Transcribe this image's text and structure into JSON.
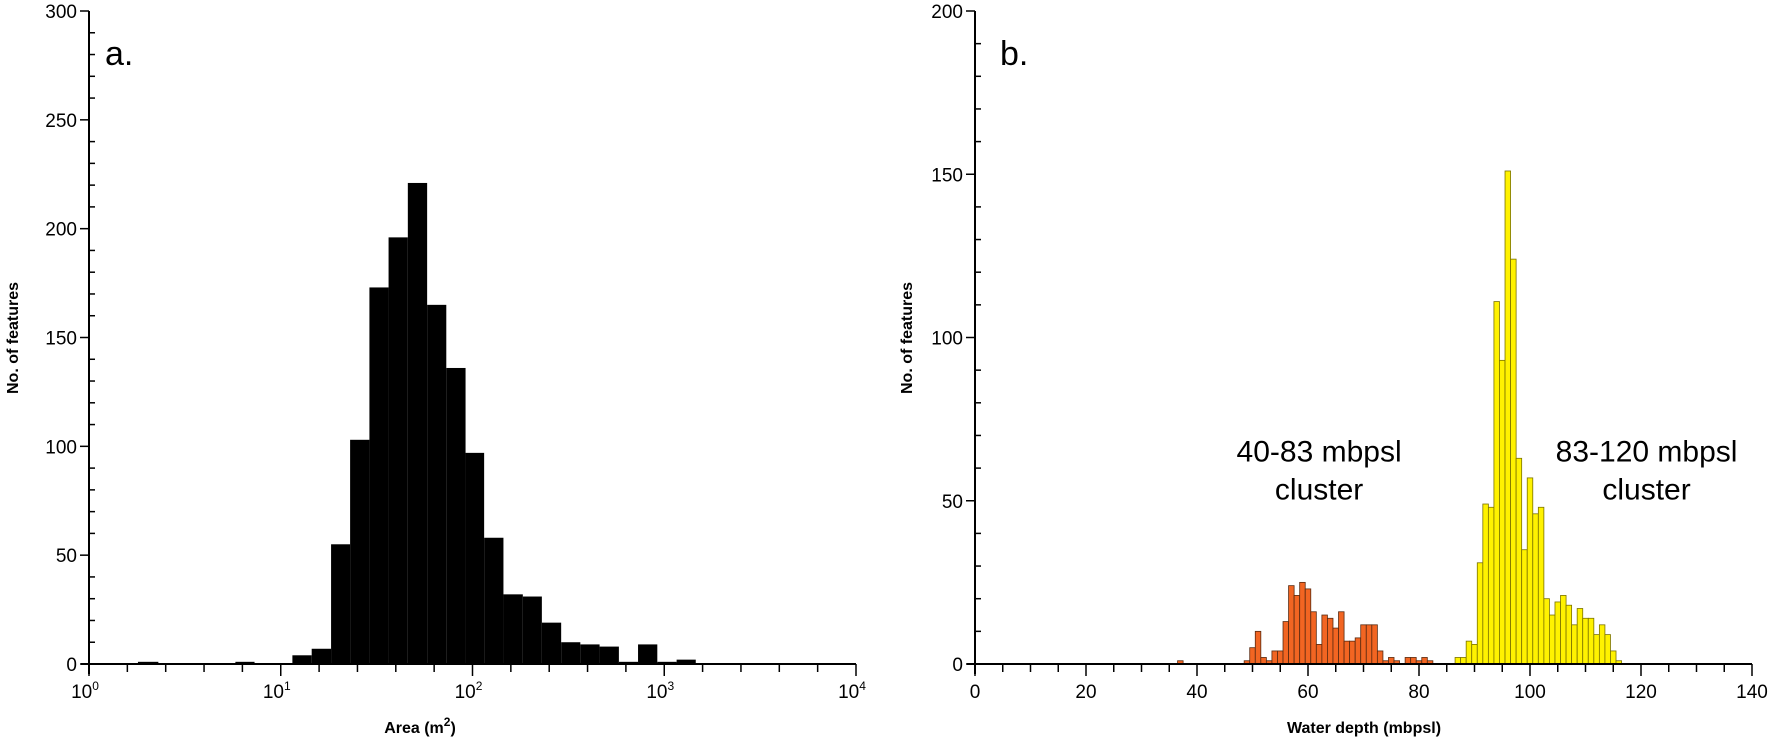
{
  "colors": {
    "bar_a": "#000000",
    "orange_fill": "#F26522",
    "orange_edge": "#5a2a10",
    "yellow_fill": "#FFF200",
    "yellow_edge": "#7a7200",
    "axis": "#000000"
  },
  "chart_data": [
    {
      "id": "a",
      "type": "bar",
      "panel_label": "a.",
      "title": "",
      "xlabel": "Area (m²)",
      "xlabel_base": "Area (m",
      "xlabel_sup": "2",
      "xlabel_close": ")",
      "ylabel": "No. of features",
      "xscale": "log",
      "xlim": [
        1,
        10000
      ],
      "ylim": [
        0,
        300
      ],
      "grid": false,
      "x_ticks": [
        {
          "base": "10",
          "exp": "0",
          "value": 1
        },
        {
          "base": "10",
          "exp": "1",
          "value": 10
        },
        {
          "base": "10",
          "exp": "2",
          "value": 100
        },
        {
          "base": "10",
          "exp": "3",
          "value": 1000
        },
        {
          "base": "10",
          "exp": "4",
          "value": 10000
        }
      ],
      "y_ticks": [
        "0",
        "50",
        "100",
        "150",
        "200",
        "250",
        "300"
      ],
      "bins": [
        {
          "x0": 1.8,
          "x1": 2.3,
          "count": 1
        },
        {
          "x0": 5.8,
          "x1": 7.3,
          "count": 1
        },
        {
          "x0": 11.5,
          "x1": 14.5,
          "count": 4
        },
        {
          "x0": 14.5,
          "x1": 18.3,
          "count": 7
        },
        {
          "x0": 18.3,
          "x1": 23.0,
          "count": 55
        },
        {
          "x0": 23.0,
          "x1": 29.0,
          "count": 103
        },
        {
          "x0": 29.0,
          "x1": 36.5,
          "count": 173
        },
        {
          "x0": 36.5,
          "x1": 46.0,
          "count": 196
        },
        {
          "x0": 46.0,
          "x1": 58.0,
          "count": 221
        },
        {
          "x0": 58.0,
          "x1": 73.0,
          "count": 165
        },
        {
          "x0": 73.0,
          "x1": 92.0,
          "count": 136
        },
        {
          "x0": 92.0,
          "x1": 115.0,
          "count": 97
        },
        {
          "x0": 115.0,
          "x1": 145.0,
          "count": 58
        },
        {
          "x0": 145.0,
          "x1": 183.0,
          "count": 32
        },
        {
          "x0": 183.0,
          "x1": 230.0,
          "count": 31
        },
        {
          "x0": 230.0,
          "x1": 290.0,
          "count": 19
        },
        {
          "x0": 290.0,
          "x1": 365.0,
          "count": 10
        },
        {
          "x0": 365.0,
          "x1": 460.0,
          "count": 9
        },
        {
          "x0": 460.0,
          "x1": 580.0,
          "count": 8
        },
        {
          "x0": 580.0,
          "x1": 730.0,
          "count": 1
        },
        {
          "x0": 730.0,
          "x1": 920.0,
          "count": 9
        },
        {
          "x0": 920.0,
          "x1": 1160.0,
          "count": 1
        },
        {
          "x0": 1160.0,
          "x1": 1460.0,
          "count": 2
        }
      ]
    },
    {
      "id": "b",
      "type": "bar",
      "panel_label": "b.",
      "title": "",
      "xlabel": "Water depth (mbpsl)",
      "ylabel": "No. of features",
      "xlim": [
        0,
        140
      ],
      "ylim": [
        0,
        200
      ],
      "grid": false,
      "bin_width": 1,
      "x_ticks": [
        "0",
        "20",
        "40",
        "60",
        "80",
        "100",
        "120",
        "140"
      ],
      "y_ticks": [
        "0",
        "50",
        "100",
        "150",
        "200"
      ],
      "annotations": [
        {
          "line1": "40-83 mbpsl",
          "line2": "cluster",
          "x": 62,
          "y": 62
        },
        {
          "line1": "83-120 mbpsl",
          "line2": "cluster",
          "x": 121,
          "y": 62
        }
      ],
      "series": [
        {
          "name": "40-83 mbpsl cluster",
          "color": "#F26522",
          "x": [
            37,
            49,
            50,
            51,
            52,
            53,
            54,
            55,
            56,
            57,
            58,
            59,
            60,
            61,
            62,
            63,
            64,
            65,
            66,
            67,
            68,
            69,
            70,
            71,
            72,
            73,
            74,
            75,
            76,
            78,
            79,
            80,
            81,
            82
          ],
          "values": [
            1,
            1,
            5,
            10,
            2,
            1,
            4,
            4,
            13,
            24,
            21,
            25,
            23,
            16,
            6,
            15,
            14,
            11,
            16,
            7,
            7,
            8,
            12,
            12,
            12,
            4,
            1,
            2,
            1,
            2,
            2,
            1,
            2,
            1
          ]
        },
        {
          "name": "83-120 mbpsl cluster",
          "color": "#FFF200",
          "x": [
            87,
            88,
            89,
            90,
            91,
            92,
            93,
            94,
            95,
            96,
            97,
            98,
            99,
            100,
            101,
            102,
            103,
            104,
            105,
            106,
            107,
            108,
            109,
            110,
            111,
            112,
            113,
            114,
            115,
            116
          ],
          "values": [
            2,
            2,
            7,
            6,
            31,
            49,
            48,
            111,
            93,
            151,
            124,
            63,
            35,
            57,
            46,
            48,
            20,
            15,
            19,
            21,
            18,
            12,
            17,
            14,
            14,
            9,
            12,
            9,
            4,
            1
          ]
        }
      ]
    }
  ]
}
